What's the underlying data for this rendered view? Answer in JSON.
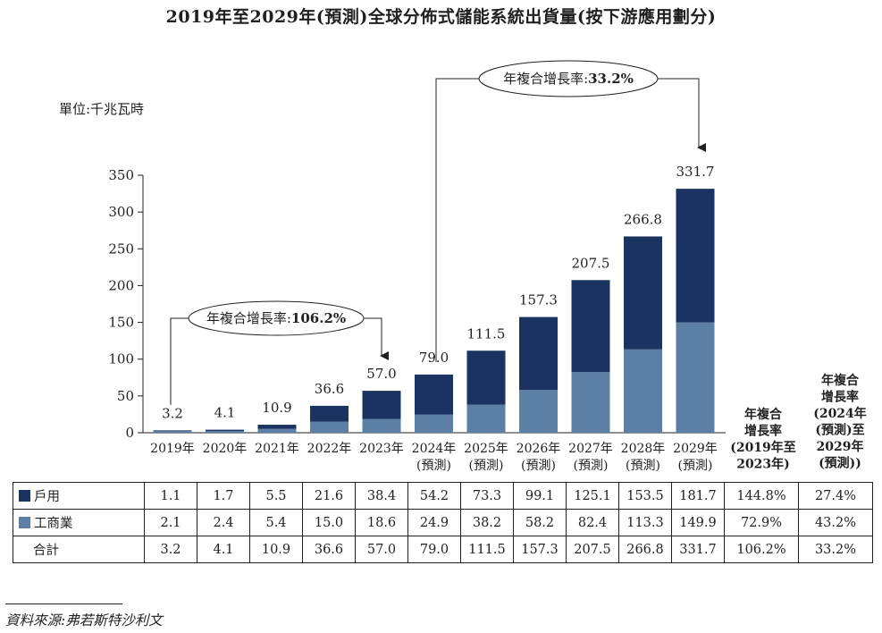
{
  "title": "2019年至2029年(預測)全球分佈式儲能系統出貨量(按下游應用劃分)",
  "unit": "單位:千兆瓦時",
  "cagr_callouts": [
    {
      "label": "年複合增長率:",
      "value": "106.2%"
    },
    {
      "label": "年複合增長率:",
      "value": "33.2%"
    }
  ],
  "colors": {
    "residential": "#1b3360",
    "commercial": "#5b7fa5",
    "ink": "#231f20"
  },
  "chart_data": {
    "type": "bar",
    "stacked": true,
    "ylim": [
      0,
      350
    ],
    "yticks": [
      0,
      50,
      100,
      150,
      200,
      250,
      300,
      350
    ],
    "categories": [
      [
        "2019年"
      ],
      [
        "2020年"
      ],
      [
        "2021年"
      ],
      [
        "2022年"
      ],
      [
        "2023年"
      ],
      [
        "2024年",
        "(預測)"
      ],
      [
        "2025年",
        "(預測)"
      ],
      [
        "2026年",
        "(預測)"
      ],
      [
        "2027年",
        "(預測)"
      ],
      [
        "2028年",
        "(預測)"
      ],
      [
        "2029年",
        "(預測)"
      ]
    ],
    "series": [
      {
        "name": "戶用",
        "values": [
          1.1,
          1.7,
          5.5,
          21.6,
          38.4,
          54.2,
          73.3,
          99.1,
          125.1,
          153.5,
          181.7
        ]
      },
      {
        "name": "工商業",
        "values": [
          2.1,
          2.4,
          5.4,
          15.0,
          18.6,
          24.9,
          38.2,
          58.2,
          82.4,
          113.3,
          149.9
        ]
      }
    ],
    "totals": [
      3.2,
      4.1,
      10.9,
      36.6,
      57.0,
      79.0,
      111.5,
      157.3,
      207.5,
      266.8,
      331.7
    ],
    "total_labels": [
      "3.2",
      "4.1",
      "10.9",
      "36.6",
      "57.0",
      "79.0",
      "111.5",
      "157.3",
      "207.5",
      "266.8",
      "331.7"
    ]
  },
  "table": {
    "cagr_headers": [
      [
        "年複合",
        "增長率",
        "(2019年至",
        "2023年)"
      ],
      [
        "年複合",
        "增長率",
        "(2024年",
        "(預測)至",
        "2029年",
        "(預測))"
      ]
    ],
    "rows": [
      {
        "label": "戶用",
        "values": [
          "1.1",
          "1.7",
          "5.5",
          "21.6",
          "38.4",
          "54.2",
          "73.3",
          "99.1",
          "125.1",
          "153.5",
          "181.7"
        ],
        "cagr1": "144.8%",
        "cagr2": "27.4%"
      },
      {
        "label": "工商業",
        "values": [
          "2.1",
          "2.4",
          "5.4",
          "15.0",
          "18.6",
          "24.9",
          "38.2",
          "58.2",
          "82.4",
          "113.3",
          "149.9"
        ],
        "cagr1": "72.9%",
        "cagr2": "43.2%"
      },
      {
        "label": "合計",
        "values": [
          "3.2",
          "4.1",
          "10.9",
          "36.6",
          "57.0",
          "79.0",
          "111.5",
          "157.3",
          "207.5",
          "266.8",
          "331.7"
        ],
        "cagr1": "106.2%",
        "cagr2": "33.2%"
      }
    ]
  },
  "source": "資料來源:弗若斯特沙利文"
}
